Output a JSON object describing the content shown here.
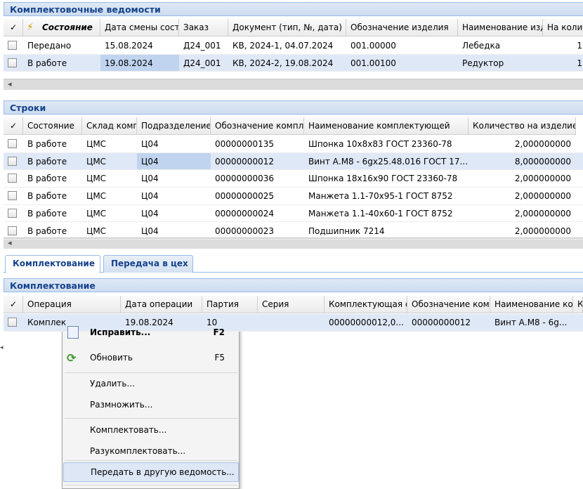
{
  "sheets": {
    "title": "Комплектовочные ведомости",
    "columns": [
      "Состояние",
      "Дата смены сост",
      "Заказ",
      "Документ (тип, №, дата)",
      "Обозначение изделия",
      "Наименование изд",
      "На колич"
    ],
    "rows": [
      [
        "Передано",
        "15.08.2024",
        "Д24_001",
        "КВ, 2024-1, 04.07.2024",
        "001.00000",
        "Лебедка",
        "1"
      ],
      [
        "В работе",
        "19.08.2024",
        "Д24_001",
        "КВ, 2024-2, 19.08.2024",
        "001.00100",
        "Редуктор",
        "1"
      ]
    ]
  },
  "lines": {
    "title": "Строки",
    "columns": [
      "Состояние",
      "Склад комп",
      "Подразделение-",
      "Обозначение компле",
      "Наименование комплектующей",
      "Количество на изделие"
    ],
    "rows": [
      [
        "В работе",
        "ЦМС",
        "Ц04",
        "00000000135",
        "Шпонка 10x8x83 ГОСТ 23360-78",
        "2,000000000"
      ],
      [
        "В работе",
        "ЦМС",
        "Ц04",
        "00000000012",
        "Винт А.М8 - 6gx25.48.016 ГОСТ 17...",
        "8,000000000"
      ],
      [
        "В работе",
        "ЦМС",
        "Ц04",
        "00000000036",
        "Шпонка 18x16x90 ГОСТ 23360-78",
        "2,000000000"
      ],
      [
        "В работе",
        "ЦМС",
        "Ц04",
        "00000000025",
        "Манжета 1.1-70x95-1 ГОСТ 8752",
        "2,000000000"
      ],
      [
        "В работе",
        "ЦМС",
        "Ц04",
        "00000000024",
        "Манжета 1.1-40x60-1 ГОСТ 8752",
        "2,000000000"
      ],
      [
        "В работе",
        "ЦМС",
        "Ц04",
        "00000000023",
        "Подшипник 7214",
        "2,000000000"
      ]
    ]
  },
  "tabs": [
    "Комплектование",
    "Передача в цех"
  ],
  "picking": {
    "title": "Комплектование",
    "columns": [
      "Операция",
      "Дата операции",
      "Партия",
      "Серия",
      "Комплектующая ф",
      "Обозначение комп",
      "Наименование ком",
      "К"
    ],
    "rows": [
      [
        "Комплек",
        "19.08.2024",
        "10",
        "",
        "00000000012,0...",
        "00000000012",
        "Винт А.М8 - 6g...",
        ""
      ]
    ]
  },
  "context_menu": {
    "items": [
      {
        "label": "Исправить...",
        "shortcut": "F2"
      },
      {
        "label": "Обновить",
        "shortcut": "F5"
      },
      {
        "label": "Удалить..."
      },
      {
        "label": "Размножить..."
      },
      {
        "label": "Комплектовать..."
      },
      {
        "label": "Разукомплектовать..."
      },
      {
        "label": "Передать в другую ведомость..."
      }
    ]
  }
}
